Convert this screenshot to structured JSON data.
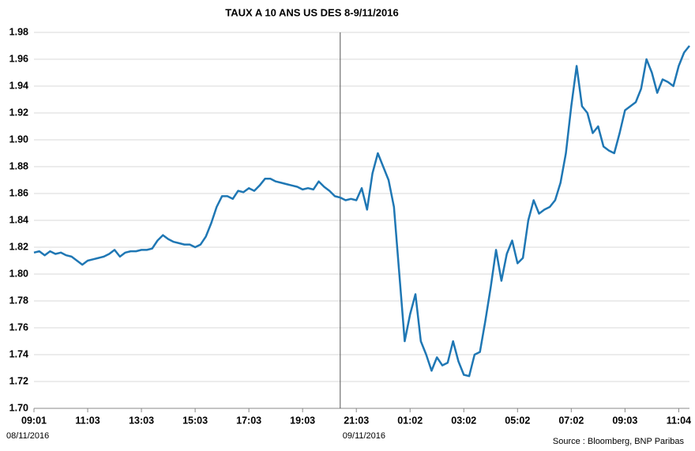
{
  "chart_data": {
    "type": "line",
    "title": "TAUX A 10 ANS US DES 8-9/11/2016",
    "source": "Source : Bloomberg, BNP Paribas",
    "x": [
      0,
      1,
      2,
      3,
      4,
      5,
      6,
      7,
      8,
      9,
      10,
      11,
      12,
      13,
      14,
      15,
      16,
      17,
      18,
      19,
      20,
      21,
      22,
      23,
      24,
      25,
      26,
      27,
      28,
      29,
      30,
      31,
      32,
      33,
      34,
      35,
      36,
      37,
      38,
      39,
      40,
      41,
      42,
      43,
      44,
      45,
      46,
      47,
      48,
      49,
      50,
      51,
      52,
      53,
      54,
      55,
      56,
      57,
      58,
      59,
      60,
      61,
      62,
      63,
      64,
      65,
      66,
      67,
      68,
      69,
      70,
      71,
      72,
      73,
      74,
      75,
      76,
      77,
      78,
      79,
      80,
      81,
      82,
      83,
      84,
      85,
      86,
      87,
      88,
      89,
      90,
      91,
      92,
      93,
      94,
      95,
      96,
      97,
      98,
      99,
      100,
      101,
      102,
      103,
      104,
      105,
      106,
      107,
      108,
      109,
      110,
      111,
      112,
      113,
      114,
      115,
      116,
      117,
      118,
      119,
      120,
      121,
      122
    ],
    "series": [
      {
        "color": "#1f77b4",
        "values": [
          1.816,
          1.817,
          1.814,
          1.817,
          1.815,
          1.816,
          1.814,
          1.813,
          1.81,
          1.807,
          1.81,
          1.811,
          1.812,
          1.813,
          1.815,
          1.818,
          1.813,
          1.816,
          1.817,
          1.817,
          1.818,
          1.818,
          1.819,
          1.825,
          1.829,
          1.826,
          1.824,
          1.823,
          1.822,
          1.822,
          1.82,
          1.822,
          1.828,
          1.838,
          1.85,
          1.858,
          1.858,
          1.856,
          1.862,
          1.861,
          1.864,
          1.862,
          1.866,
          1.871,
          1.871,
          1.869,
          1.868,
          1.867,
          1.866,
          1.865,
          1.863,
          1.864,
          1.863,
          1.869,
          1.865,
          1.862,
          1.858,
          1.857,
          1.855,
          1.856,
          1.855,
          1.864,
          1.848,
          1.875,
          1.89,
          1.88,
          1.87,
          1.85,
          1.8,
          1.75,
          1.77,
          1.785,
          1.75,
          1.74,
          1.728,
          1.738,
          1.732,
          1.734,
          1.75,
          1.735,
          1.725,
          1.724,
          1.74,
          1.742,
          1.765,
          1.79,
          1.818,
          1.795,
          1.815,
          1.825,
          1.808,
          1.812,
          1.84,
          1.855,
          1.845,
          1.848,
          1.85,
          1.855,
          1.868,
          1.89,
          1.925,
          1.955,
          1.925,
          1.92,
          1.905,
          1.91,
          1.895,
          1.892,
          1.89,
          1.905,
          1.922,
          1.925,
          1.928,
          1.938,
          1.96,
          1.95,
          1.935,
          1.945,
          1.943,
          1.94,
          1.955,
          1.965,
          1.97
        ]
      }
    ],
    "xlim": [
      0,
      122
    ],
    "xticks": [
      {
        "value": 0,
        "label": "09:01"
      },
      {
        "value": 10,
        "label": "11:03"
      },
      {
        "value": 20,
        "label": "13:03"
      },
      {
        "value": 30,
        "label": "15:03"
      },
      {
        "value": 40,
        "label": "17:03"
      },
      {
        "value": 50,
        "label": "19:03"
      },
      {
        "value": 60,
        "label": "21:03"
      },
      {
        "value": 70,
        "label": "01:02"
      },
      {
        "value": 80,
        "label": "03:02"
      },
      {
        "value": 90,
        "label": "05:02"
      },
      {
        "value": 100,
        "label": "07:02"
      },
      {
        "value": 110,
        "label": "09:03"
      },
      {
        "value": 120,
        "label": "11:04"
      }
    ],
    "ylim": [
      1.7,
      1.98
    ],
    "yticks": [
      {
        "value": 1.7,
        "label": "1.70"
      },
      1.72,
      1.74,
      1.76,
      1.78,
      {
        "value": 1.8,
        "label": "1.80"
      },
      1.82,
      1.84,
      1.86,
      1.88,
      {
        "value": 1.9,
        "label": "1.90"
      },
      1.92,
      1.94,
      1.96,
      1.98
    ],
    "grid": true,
    "date_annotations": [
      {
        "x": 0,
        "label": "08/11/2016",
        "vline": false
      },
      {
        "x": 57,
        "label": "09/11/2016",
        "vline": true
      }
    ]
  }
}
